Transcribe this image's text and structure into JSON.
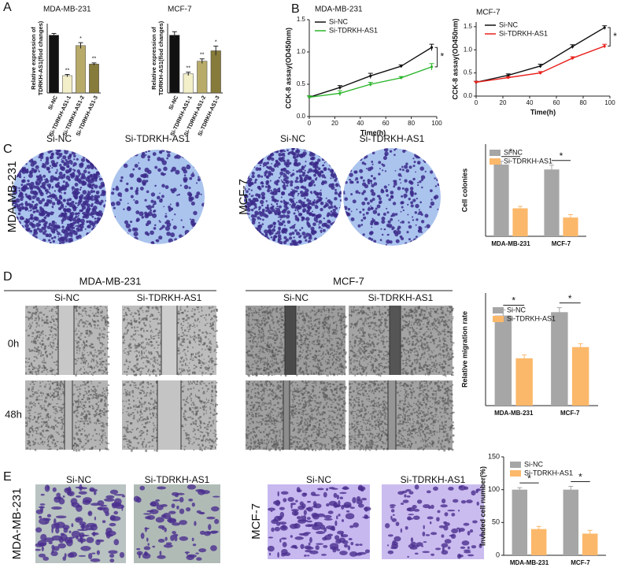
{
  "panel_labels": [
    "A",
    "B",
    "C",
    "D",
    "E"
  ],
  "chart_data": [
    {
      "type": "bar",
      "title": "MDA-MB-231",
      "y_label": [
        "Relative expression of",
        "TDRKH-AS1(flod changes)"
      ],
      "categories": [
        "Si-NC",
        "Si-TDRKH-AS1-1",
        "Si-TDRKH-AS1-2",
        "Si-TDRKH-AS1-3"
      ],
      "values": [
        1.0,
        0.3,
        0.82,
        0.5
      ],
      "errors": [
        0.03,
        0.02,
        0.05,
        0.02
      ],
      "colors": [
        "#111111",
        "#f3efc8",
        "#b8ab6a",
        "#877b3b"
      ],
      "significance": [
        null,
        "**",
        "*",
        "**"
      ],
      "ylim": [
        0,
        1.2
      ]
    },
    {
      "type": "bar",
      "title": "MCF-7",
      "y_label": [
        "Relative expression of",
        "TDRKH-AS1(flod changes)"
      ],
      "categories": [
        "Si-NC",
        "Si-TDRKH-AS1-1",
        "Si-TDRKH-AS1-2",
        "Si-TDRKH-AS1-3"
      ],
      "values": [
        1.0,
        0.33,
        0.55,
        0.73
      ],
      "errors": [
        0.06,
        0.03,
        0.04,
        0.08
      ],
      "colors": [
        "#111111",
        "#f3efc8",
        "#b8ab6a",
        "#877b3b"
      ],
      "significance": [
        null,
        "**",
        "**",
        "*"
      ],
      "ylim": [
        0,
        1.2
      ]
    },
    {
      "type": "line",
      "title": "MDA-MB-231",
      "x_label": "Time(h)",
      "y_label": [
        "CCK-8 assay(OD450nm)"
      ],
      "x": [
        0,
        24,
        48,
        72,
        96
      ],
      "xlim": [
        0,
        100
      ],
      "xticks": [
        0,
        20,
        40,
        60,
        80,
        100
      ],
      "ylim": [
        0,
        1.5
      ],
      "yticks": [
        {
          "value": 0,
          "label": "0.0"
        },
        {
          "value": 0.5,
          "label": "0.5"
        },
        {
          "value": 1,
          "label": "1.0"
        },
        {
          "value": 1.5,
          "label": "1.5"
        }
      ],
      "series": [
        {
          "name": "Si-NC",
          "color": "#111111",
          "values": [
            0.3,
            0.45,
            0.63,
            0.78,
            1.07
          ],
          "errors": [
            0.02,
            0.03,
            0.04,
            0.02,
            0.05
          ]
        },
        {
          "name": "Si-TDRKH-AS1",
          "color": "#2bb52b",
          "values": [
            0.3,
            0.36,
            0.5,
            0.6,
            0.77
          ],
          "errors": [
            0.02,
            0.04,
            0.03,
            0.02,
            0.05
          ]
        }
      ],
      "annotation": "*"
    },
    {
      "type": "line",
      "title": "MCF-7",
      "x_label": "Time(h)",
      "y_label": [
        "CCK-8 assay(OD450nm)"
      ],
      "x": [
        0,
        24,
        48,
        72,
        96
      ],
      "xlim": [
        0,
        100
      ],
      "xticks": [
        0,
        20,
        40,
        60,
        80,
        100
      ],
      "ylim": [
        0,
        1.6
      ],
      "yticks": [
        {
          "value": 0,
          "label": "0.0"
        },
        {
          "value": 0.5,
          "label": "0.5"
        },
        {
          "value": 1,
          "label": "1.0"
        },
        {
          "value": 1.5,
          "label": "1.5"
        }
      ],
      "series": [
        {
          "name": "Si-NC",
          "color": "#111111",
          "values": [
            0.3,
            0.45,
            0.65,
            1.07,
            1.48
          ],
          "errors": [
            0.02,
            0.03,
            0.04,
            0.04,
            0.04
          ]
        },
        {
          "name": "Si-TDRKH-AS1",
          "color": "#e8201c",
          "values": [
            0.3,
            0.4,
            0.5,
            0.82,
            1.08
          ],
          "errors": [
            0.02,
            0.02,
            0.03,
            0.03,
            0.04
          ]
        }
      ],
      "annotation": "*"
    },
    {
      "type": "bar",
      "y_label": [
        "Cell colonies"
      ],
      "categories": [
        "MDA-MB-231",
        "MCF-7"
      ],
      "ylim": [
        0,
        280
      ],
      "series": [
        {
          "name": "Si-NC",
          "color": "#a6a6a6",
          "values": [
            218,
            203
          ],
          "errors": [
            10,
            13
          ]
        },
        {
          "name": "Si-TDRKH-AS1",
          "color": "#fbb86a",
          "values": [
            85,
            57
          ],
          "errors": [
            6,
            9
          ]
        }
      ],
      "significance": [
        "*",
        "*"
      ]
    },
    {
      "type": "bar",
      "y_label": [
        "Relative migration rate"
      ],
      "categories": [
        "MDA-MB-231",
        "MCF-7"
      ],
      "ylim": [
        0,
        1.0
      ],
      "series": [
        {
          "name": "Si-NC",
          "color": "#a6a6a6",
          "values": [
            0.8,
            0.83
          ],
          "errors": [
            0.05,
            0.04
          ]
        },
        {
          "name": "Si-TDRKH-AS1",
          "color": "#fbb86a",
          "values": [
            0.42,
            0.52
          ],
          "errors": [
            0.03,
            0.03
          ]
        }
      ],
      "significance": [
        "*",
        "*"
      ]
    },
    {
      "type": "bar",
      "y_label": [
        "Invaded cell number(%)"
      ],
      "categories": [
        "MDA-MB-231",
        "MCF-7"
      ],
      "ylim": [
        0,
        150
      ],
      "yticks": [
        0,
        50,
        100,
        150
      ],
      "series": [
        {
          "name": "Si-NC",
          "color": "#a6a6a6",
          "values": [
            100,
            100
          ],
          "errors": [
            3,
            5
          ]
        },
        {
          "name": "Si-TDRKH-AS1",
          "color": "#fbb86a",
          "values": [
            40,
            33
          ],
          "errors": [
            4,
            5
          ]
        }
      ],
      "significance": [
        "*",
        "*"
      ]
    }
  ],
  "colony_assay": {
    "columns": [
      "Si-NC",
      "Si-TDRKH-AS1",
      "Si-NC",
      "Si-TDRKH-AS1"
    ],
    "rows": [
      "MDA-MB-231",
      "MCF-7"
    ]
  },
  "wound_healing": {
    "cell_lines": [
      "MDA-MB-231",
      "MCF-7"
    ],
    "columns": [
      "Si-NC",
      "Si-TDRKH-AS1",
      "Si-NC",
      "Si-TDRKH-AS1"
    ],
    "times": [
      "0h",
      "48h"
    ]
  },
  "transwell": {
    "columns": [
      "Si-NC",
      "Si-TDRKH-AS1",
      "Si-NC",
      "Si-TDRKH-AS1"
    ],
    "rows": [
      "MDA-MB-231",
      "MCF-7"
    ]
  }
}
